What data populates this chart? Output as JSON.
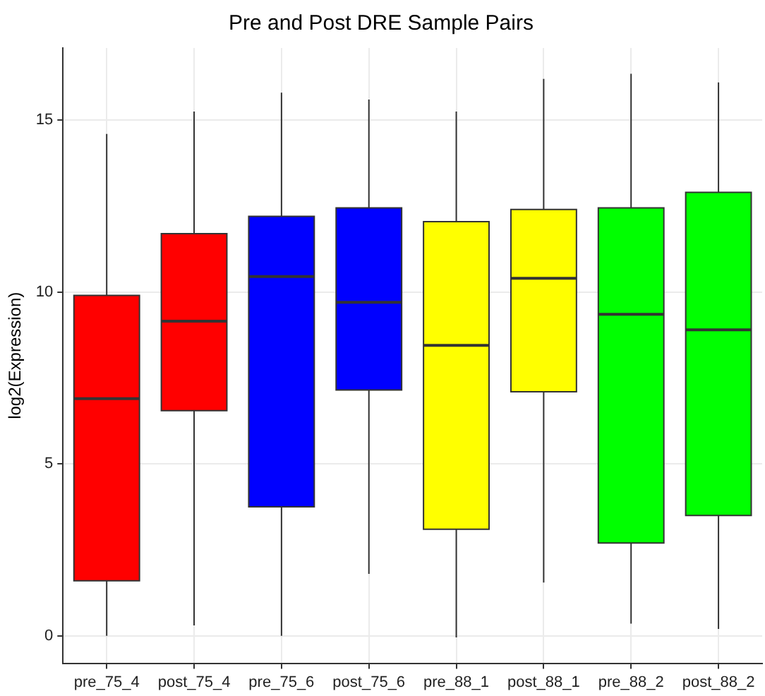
{
  "chart_data": {
    "type": "box",
    "title": "Pre and Post DRE Sample Pairs",
    "ylabel": "log2(Expression)",
    "categories": [
      "pre_75_4",
      "post_75_4",
      "pre_75_6",
      "post_75_6",
      "pre_88_1",
      "post_88_1",
      "pre_88_2",
      "post_88_2"
    ],
    "colors": [
      "#ff0000",
      "#ff0000",
      "#0000ff",
      "#0000ff",
      "#ffff00",
      "#ffff00",
      "#00ff00",
      "#00ff00"
    ],
    "boxes": [
      {
        "low": 0,
        "q1": 1.6,
        "median": 6.9,
        "q3": 9.9,
        "high": 14.6
      },
      {
        "low": 0.3,
        "q1": 6.55,
        "median": 9.15,
        "q3": 11.7,
        "high": 15.25
      },
      {
        "low": 0,
        "q1": 3.75,
        "median": 10.45,
        "q3": 12.2,
        "high": 15.8
      },
      {
        "low": 1.8,
        "q1": 7.15,
        "median": 9.7,
        "q3": 12.45,
        "high": 15.6
      },
      {
        "low": -0.05,
        "q1": 3.1,
        "median": 8.45,
        "q3": 12.05,
        "high": 15.25
      },
      {
        "low": 1.55,
        "q1": 7.1,
        "median": 10.4,
        "q3": 12.4,
        "high": 16.2
      },
      {
        "low": 0.35,
        "q1": 2.7,
        "median": 9.35,
        "q3": 12.45,
        "high": 16.35
      },
      {
        "low": 0.2,
        "q1": 3.5,
        "median": 8.9,
        "q3": 12.9,
        "high": 16.1
      }
    ],
    "ylim": [
      -0.8,
      17.1
    ],
    "yticks": [
      0,
      5,
      10,
      15
    ],
    "grid": true
  }
}
